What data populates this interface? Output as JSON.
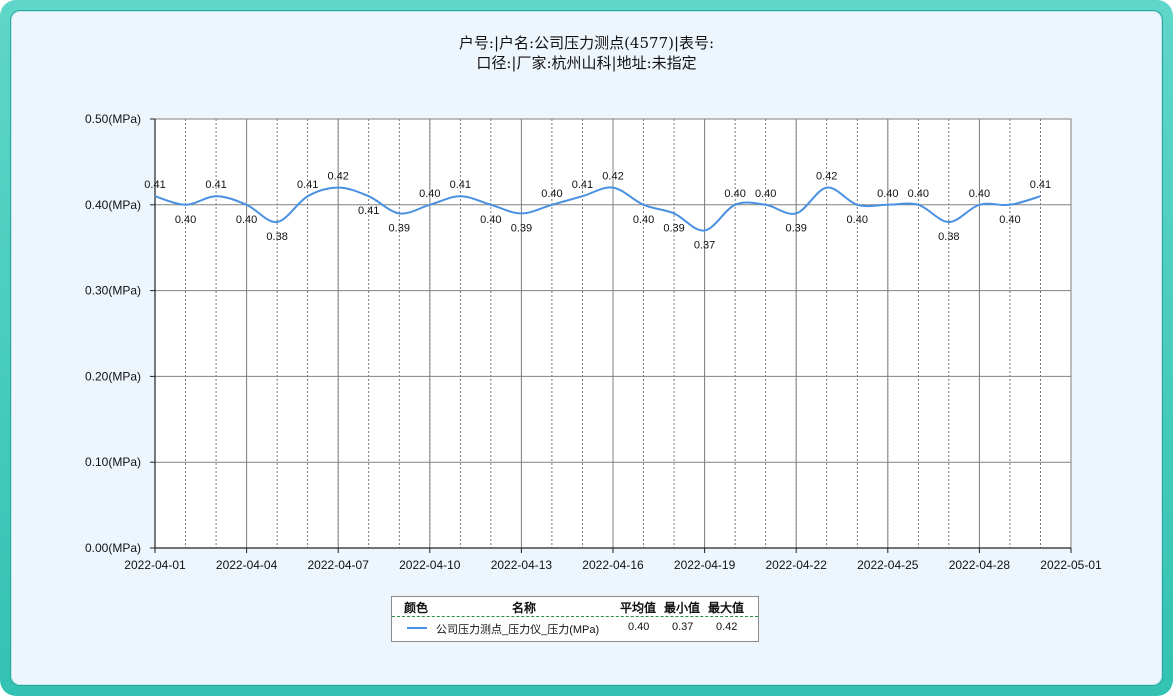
{
  "title": {
    "line1": "户号:|户名:公司压力测点(4577)|表号:",
    "line2": "口径:|厂家:杭州山科|地址:未指定"
  },
  "colors": {
    "series": "#4a90e2",
    "grid": "#808080",
    "axis": "#222222"
  },
  "chart_data": {
    "type": "line",
    "title": "户号:|户名:公司压力测点(4577)|表号: 口径:|厂家:杭州山科|地址:未指定",
    "xlabel": "",
    "ylabel": "",
    "ylim": [
      0,
      0.5
    ],
    "yticks": [
      "0.00(MPa)",
      "0.10(MPa)",
      "0.20(MPa)",
      "0.30(MPa)",
      "0.40(MPa)",
      "0.50(MPa)"
    ],
    "xlim": [
      "2022-04-01",
      "2022-05-01"
    ],
    "xticks": [
      "2022-04-01",
      "2022-04-04",
      "2022-04-07",
      "2022-04-10",
      "2022-04-13",
      "2022-04-16",
      "2022-04-19",
      "2022-04-22",
      "2022-04-25",
      "2022-04-28",
      "2022-05-01"
    ],
    "grid": true,
    "series": [
      {
        "name": "公司压力测点_压力仪_压力(MPa)",
        "x": [
          "2022-04-01",
          "2022-04-02",
          "2022-04-03",
          "2022-04-04",
          "2022-04-05",
          "2022-04-06",
          "2022-04-07",
          "2022-04-08",
          "2022-04-09",
          "2022-04-10",
          "2022-04-11",
          "2022-04-12",
          "2022-04-13",
          "2022-04-14",
          "2022-04-15",
          "2022-04-16",
          "2022-04-17",
          "2022-04-18",
          "2022-04-19",
          "2022-04-20",
          "2022-04-21",
          "2022-04-22",
          "2022-04-23",
          "2022-04-24",
          "2022-04-25",
          "2022-04-26",
          "2022-04-27",
          "2022-04-28",
          "2022-04-29",
          "2022-04-30"
        ],
        "values": [
          0.41,
          0.4,
          0.41,
          0.4,
          0.38,
          0.41,
          0.42,
          0.41,
          0.39,
          0.4,
          0.41,
          0.4,
          0.39,
          0.4,
          0.41,
          0.42,
          0.4,
          0.39,
          0.37,
          0.4,
          0.4,
          0.39,
          0.42,
          0.4,
          0.4,
          0.4,
          0.38,
          0.4,
          0.4,
          0.41
        ],
        "labels": [
          "0.41",
          "0.40",
          "0.41",
          "0.40",
          "0.38",
          "0.41",
          "0.42",
          "0.41",
          "0.39",
          "0.40",
          "0.41",
          "0.40",
          "0.39",
          "0.40",
          "0.41",
          "0.42",
          "0.40",
          "0.39",
          "0.37",
          "0.40",
          "0.40",
          "0.39",
          "0.42",
          "0.40",
          "0.40",
          "0.40",
          "0.38",
          "0.40",
          "0.40",
          "0.41"
        ]
      }
    ]
  },
  "legend": {
    "headers": {
      "color": "颜色",
      "name": "名称",
      "avg": "平均值",
      "min": "最小值",
      "max": "最大值"
    },
    "row": {
      "name": "公司压力测点_压力仪_压力(MPa)",
      "avg": "0.40",
      "min": "0.37",
      "max": "0.42"
    }
  }
}
